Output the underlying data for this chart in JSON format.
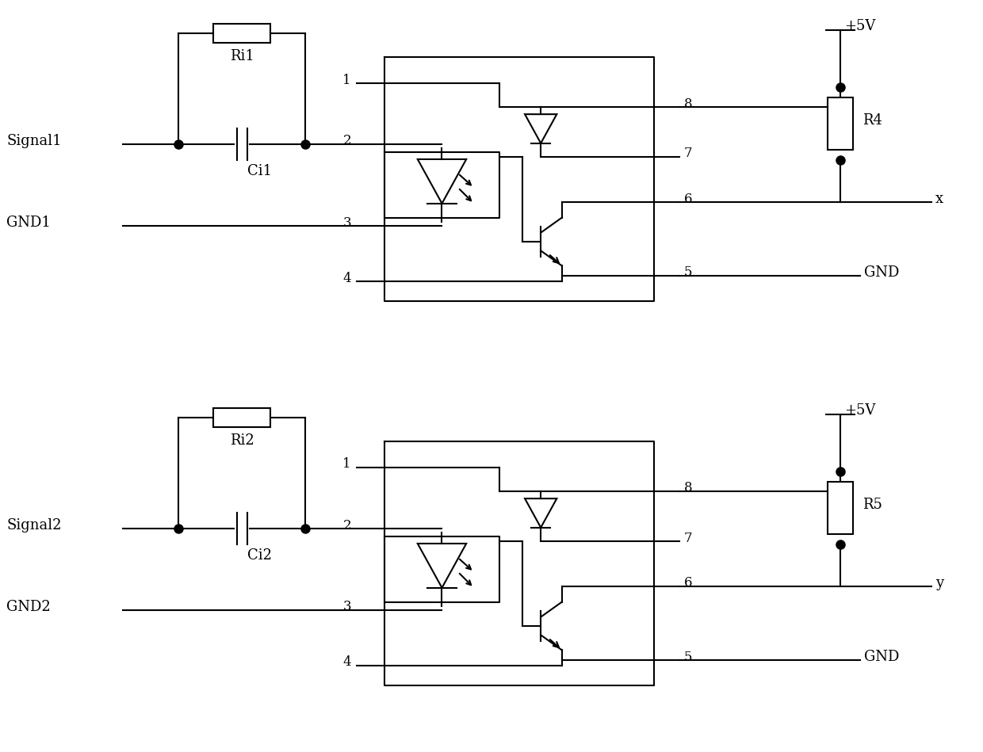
{
  "bg_color": "#ffffff",
  "lc": "#000000",
  "lw": 1.5,
  "circuits": [
    {
      "oy": 0.0,
      "signal_label": "Signal1",
      "ri_label": "Ri1",
      "ci_label": "Ci1",
      "gnd_label": "GND1",
      "r_label": "R4",
      "vcc_label": "+5V",
      "out_label": "x",
      "gnd_right": "GND"
    },
    {
      "oy": -4.85,
      "signal_label": "Signal2",
      "ri_label": "Ri2",
      "ci_label": "Ci2",
      "gnd_label": "GND2",
      "r_label": "R5",
      "vcc_label": "+5V",
      "out_label": "y",
      "gnd_right": "GND"
    }
  ]
}
